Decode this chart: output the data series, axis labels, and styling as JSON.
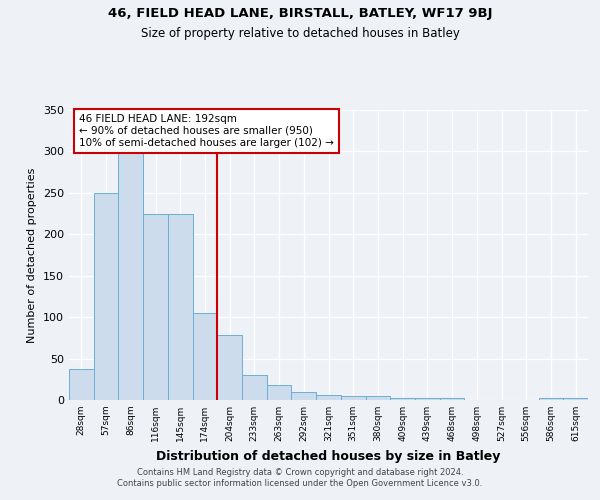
{
  "title1": "46, FIELD HEAD LANE, BIRSTALL, BATLEY, WF17 9BJ",
  "title2": "Size of property relative to detached houses in Batley",
  "xlabel": "Distribution of detached houses by size in Batley",
  "ylabel": "Number of detached properties",
  "bar_labels": [
    "28sqm",
    "57sqm",
    "86sqm",
    "116sqm",
    "145sqm",
    "174sqm",
    "204sqm",
    "233sqm",
    "263sqm",
    "292sqm",
    "321sqm",
    "351sqm",
    "380sqm",
    "409sqm",
    "439sqm",
    "468sqm",
    "498sqm",
    "527sqm",
    "556sqm",
    "586sqm",
    "615sqm"
  ],
  "bar_values": [
    38,
    250,
    300,
    225,
    225,
    105,
    78,
    30,
    18,
    10,
    6,
    5,
    5,
    3,
    3,
    3,
    0,
    0,
    0,
    3,
    3
  ],
  "bar_color": "#ccdcec",
  "bar_edge_color": "#6baed6",
  "vline_x": 5.5,
  "vline_color": "#cc0000",
  "annotation_text": "46 FIELD HEAD LANE: 192sqm\n← 90% of detached houses are smaller (950)\n10% of semi-detached houses are larger (102) →",
  "annotation_box_color": "white",
  "annotation_box_edge": "#cc0000",
  "ylim": [
    0,
    350
  ],
  "yticks": [
    0,
    50,
    100,
    150,
    200,
    250,
    300,
    350
  ],
  "footer": "Contains HM Land Registry data © Crown copyright and database right 2024.\nContains public sector information licensed under the Open Government Licence v3.0.",
  "bg_color": "#eef2f7",
  "plot_bg_color": "#eef2f7"
}
